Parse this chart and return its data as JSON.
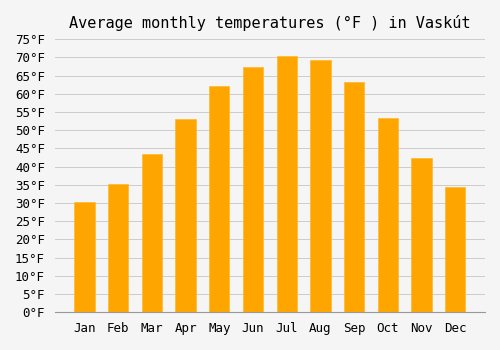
{
  "title": "Average monthly temperatures (°F ) in Vaskút",
  "months": [
    "Jan",
    "Feb",
    "Mar",
    "Apr",
    "May",
    "Jun",
    "Jul",
    "Aug",
    "Sep",
    "Oct",
    "Nov",
    "Dec"
  ],
  "values": [
    30.2,
    35.2,
    43.5,
    53.1,
    62.1,
    67.3,
    70.3,
    69.3,
    63.1,
    53.4,
    42.3,
    34.3
  ],
  "bar_color": "#FFA500",
  "bar_edge_color": "#FFB833",
  "background_color": "#f5f5f5",
  "grid_color": "#cccccc",
  "ylim": [
    0,
    75
  ],
  "yticks": [
    0,
    5,
    10,
    15,
    20,
    25,
    30,
    35,
    40,
    45,
    50,
    55,
    60,
    65,
    70,
    75
  ],
  "title_fontsize": 11,
  "tick_fontsize": 9,
  "tick_font_family": "monospace"
}
